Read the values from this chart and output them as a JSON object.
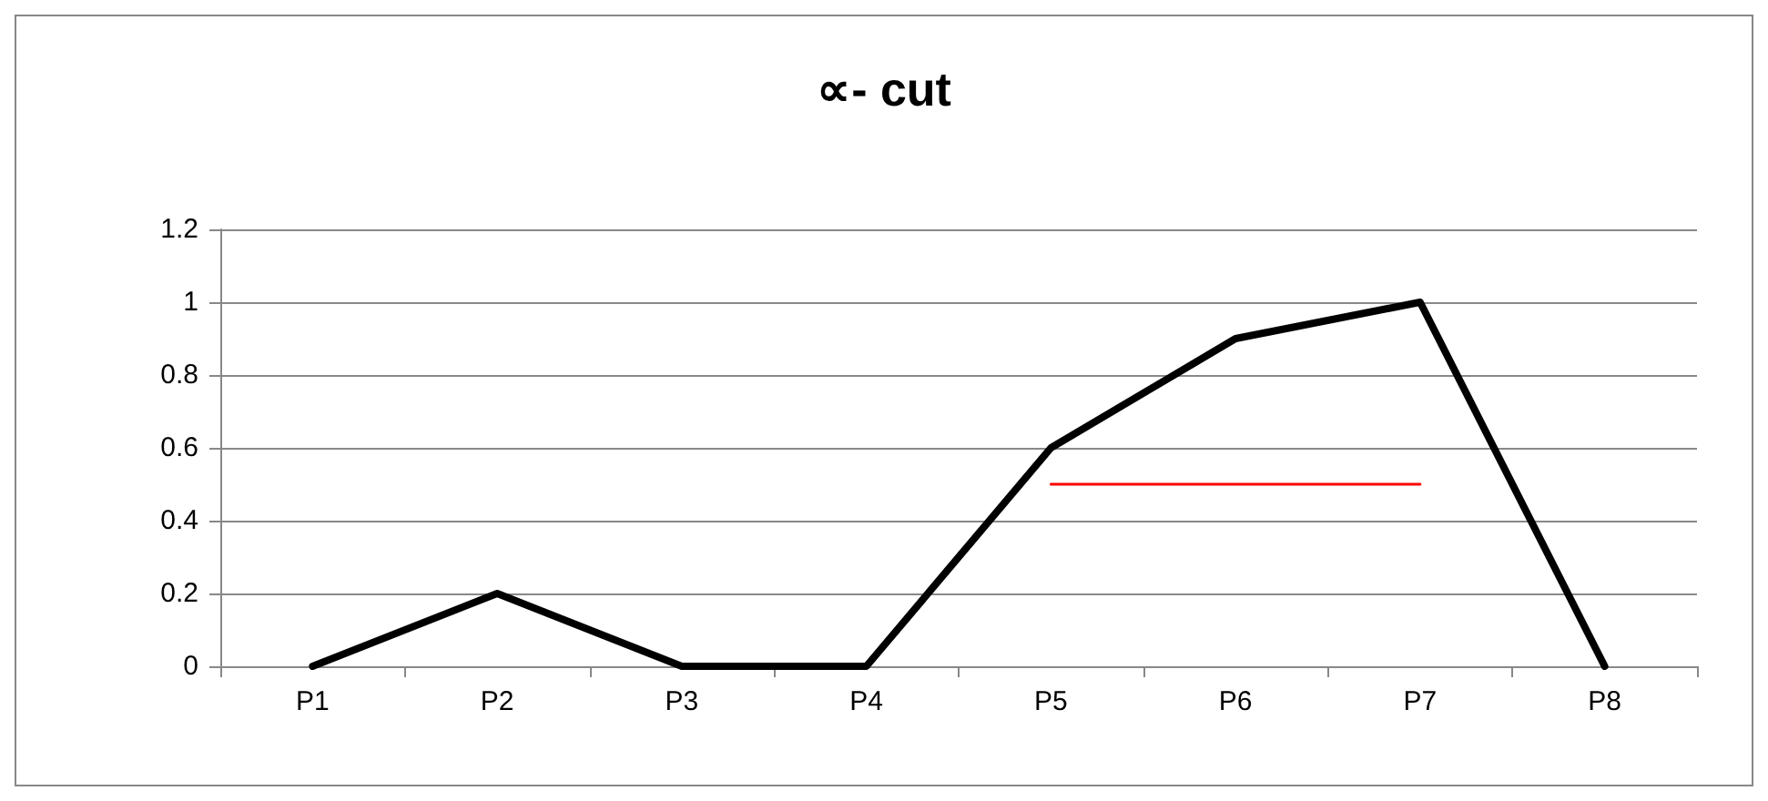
{
  "chart_data": {
    "type": "line",
    "title": "∝- cut",
    "categories": [
      "P1",
      "P2",
      "P3",
      "P4",
      "P5",
      "P6",
      "P7",
      "P8"
    ],
    "series": [
      {
        "color": "#000000",
        "values": [
          0,
          0.2,
          0,
          0,
          0.6,
          0.9,
          1,
          0
        ]
      },
      {
        "color": "#ff0000",
        "values": [
          null,
          null,
          null,
          null,
          0.5,
          0.5,
          0.5,
          null
        ]
      }
    ],
    "ylim": [
      0,
      1.2
    ],
    "yticks": [
      0,
      0.2,
      0.4,
      0.6,
      0.8,
      1,
      1.2
    ],
    "grid": "y",
    "marker": "none",
    "line_style": "solid"
  }
}
